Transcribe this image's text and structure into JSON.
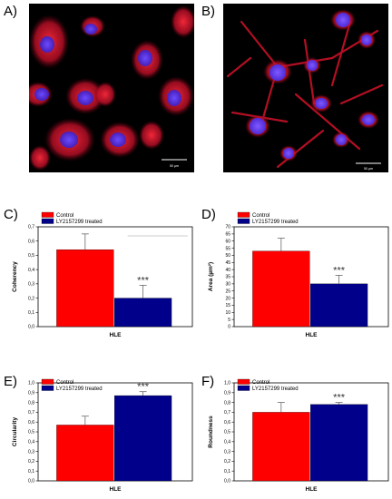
{
  "figure": {
    "panels": {
      "a": "A)",
      "b": "B)",
      "c": "C)",
      "d": "D)",
      "e": "E)",
      "f": "F)"
    },
    "micrograph_a": {
      "scale_label": "50 µm",
      "stain_colors": [
        "#e8112a",
        "#3a2bd8"
      ]
    },
    "micrograph_b": {
      "scale_label": "50 µm",
      "stain_colors": [
        "#e8112a",
        "#3a2bd8"
      ]
    }
  },
  "chart_data": [
    {
      "panel": "C)",
      "type": "bar",
      "categories": [
        "HLE"
      ],
      "series": [
        {
          "name": "Control",
          "values": [
            0.54
          ],
          "error": [
            0.11
          ],
          "color": "#ff0000"
        },
        {
          "name": "LY2157299 treated",
          "values": [
            0.2
          ],
          "error": [
            0.09
          ],
          "color": "#00008b"
        }
      ],
      "xlabel": "HLE",
      "ylabel": "Coherency",
      "ylim": [
        0,
        0.7
      ],
      "yticks": [
        "0,0",
        "0,1",
        "0,2",
        "0,3",
        "0,4",
        "0,5",
        "0,6",
        "0,7"
      ],
      "ytick_values": [
        0,
        0.1,
        0.2,
        0.3,
        0.4,
        0.5,
        0.6,
        0.7
      ],
      "annotation": "***",
      "legend": "top-left"
    },
    {
      "panel": "D)",
      "type": "bar",
      "categories": [
        "HLE"
      ],
      "series": [
        {
          "name": "Control",
          "values": [
            53
          ],
          "error": [
            9
          ],
          "color": "#ff0000"
        },
        {
          "name": "LY2157299 treated",
          "values": [
            30
          ],
          "error": [
            6
          ],
          "color": "#00008b"
        }
      ],
      "xlabel": "HLE",
      "ylabel": "Area (µm²)",
      "ylim": [
        0,
        70
      ],
      "yticks": [
        "0",
        "5",
        "10",
        "15",
        "20",
        "25",
        "30",
        "35",
        "40",
        "45",
        "50",
        "55",
        "60",
        "65",
        "70"
      ],
      "ytick_values": [
        0,
        5,
        10,
        15,
        20,
        25,
        30,
        35,
        40,
        45,
        50,
        55,
        60,
        65,
        70
      ],
      "annotation": "***",
      "legend": "top-left"
    },
    {
      "panel": "E)",
      "type": "bar",
      "categories": [
        "HLE"
      ],
      "series": [
        {
          "name": "Control",
          "values": [
            0.57
          ],
          "error": [
            0.09
          ],
          "color": "#ff0000"
        },
        {
          "name": "LY2157299 treated",
          "values": [
            0.87
          ],
          "error": [
            0.04
          ],
          "color": "#00008b"
        }
      ],
      "xlabel": "HLE",
      "ylabel": "Circularity",
      "ylim": [
        0,
        1.0
      ],
      "yticks": [
        "0,0",
        "0,1",
        "0,2",
        "0,3",
        "0,4",
        "0,5",
        "0,6",
        "0,7",
        "0,8",
        "0,9",
        "1,0"
      ],
      "ytick_values": [
        0,
        0.1,
        0.2,
        0.3,
        0.4,
        0.5,
        0.6,
        0.7,
        0.8,
        0.9,
        1.0
      ],
      "annotation": "***",
      "legend": "top-left"
    },
    {
      "panel": "F)",
      "type": "bar",
      "categories": [
        "HLE"
      ],
      "series": [
        {
          "name": "Control",
          "values": [
            0.7
          ],
          "error": [
            0.1
          ],
          "color": "#ff0000"
        },
        {
          "name": "LY2157299 treated",
          "values": [
            0.78
          ],
          "error": [
            0.02
          ],
          "color": "#00008b"
        }
      ],
      "xlabel": "HLE",
      "ylabel": "Roundness",
      "ylim": [
        0,
        1.0
      ],
      "yticks": [
        "0,0",
        "0,1",
        "0,2",
        "0,3",
        "0,4",
        "0,5",
        "0,6",
        "0,7",
        "0,8",
        "0,9",
        "1,0"
      ],
      "ytick_values": [
        0,
        0.1,
        0.2,
        0.3,
        0.4,
        0.5,
        0.6,
        0.7,
        0.8,
        0.9,
        1.0
      ],
      "annotation": "***",
      "legend": "top-left"
    }
  ]
}
